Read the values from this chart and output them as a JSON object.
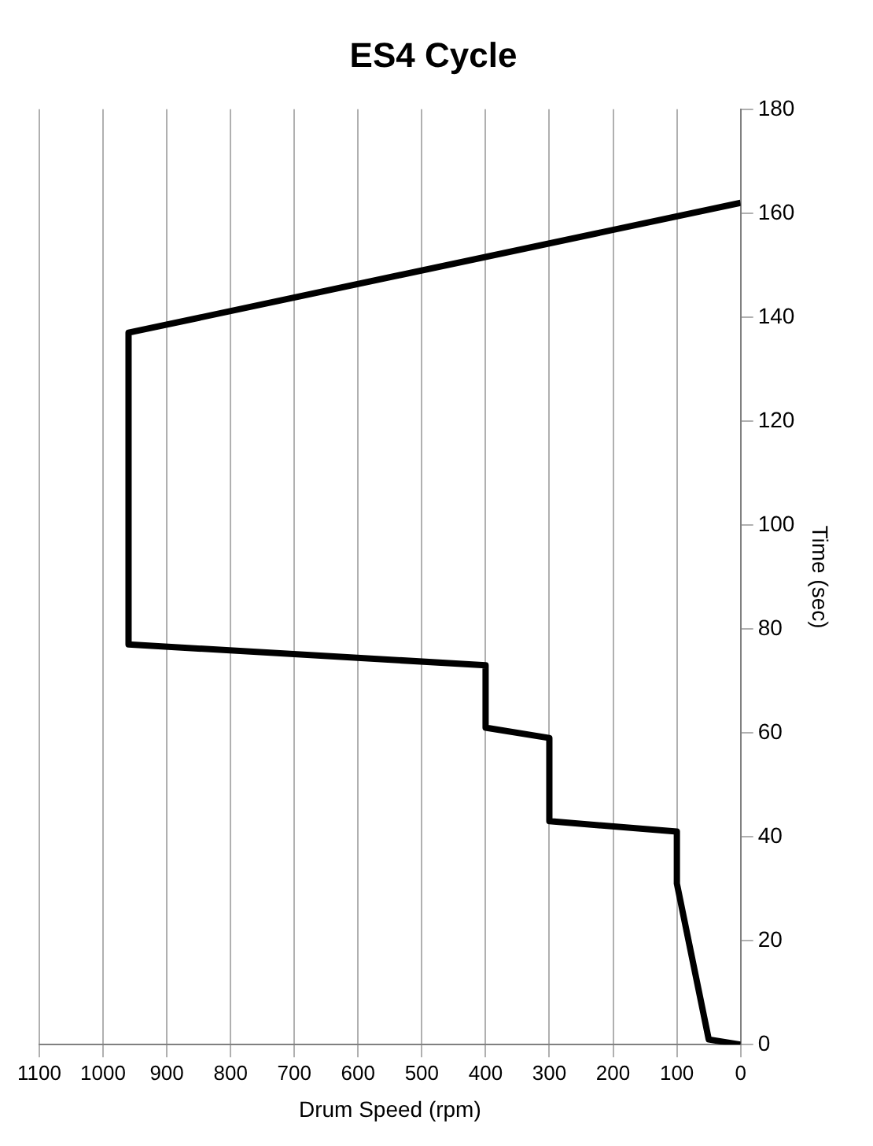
{
  "chart_data": {
    "type": "line",
    "title": "ES4 Cycle",
    "xlabel": "Drum Speed (rpm)",
    "ylabel": "Time (sec)",
    "x": [
      0,
      50,
      100,
      100,
      300,
      300,
      400,
      400,
      960,
      960,
      0
    ],
    "series": [
      {
        "color": "#000000",
        "values": [
          0,
          1,
          31,
          41,
          43,
          59,
          61,
          73,
          77,
          137,
          162
        ]
      }
    ],
    "xlim": [
      1100,
      0
    ],
    "xticks": [
      1100,
      1000,
      900,
      800,
      700,
      600,
      500,
      400,
      300,
      200,
      100,
      0
    ],
    "ylim": [
      0,
      180
    ],
    "yticks": [
      0,
      20,
      40,
      60,
      80,
      100,
      120,
      140,
      160,
      180
    ],
    "grid": "x",
    "legend": false,
    "marker": "none",
    "line_style": "solid"
  }
}
